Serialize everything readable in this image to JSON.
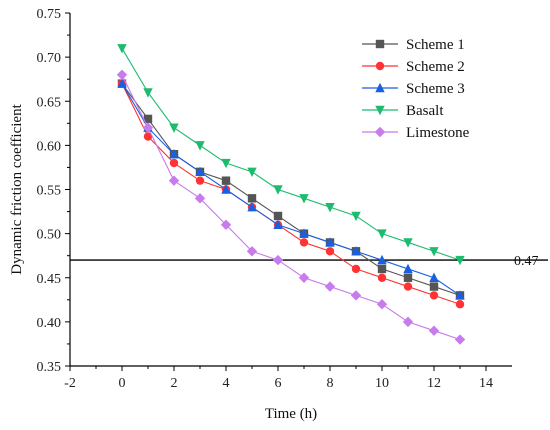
{
  "chart_data": {
    "type": "line",
    "title": "",
    "xlabel": "Time (h)",
    "ylabel": "Dynamic friction coefficient",
    "xlim": [
      -2,
      15
    ],
    "ylim": [
      0.35,
      0.75
    ],
    "xticks": [
      -2,
      0,
      2,
      4,
      6,
      8,
      10,
      12,
      14
    ],
    "yticks": [
      0.35,
      0.4,
      0.45,
      0.5,
      0.55,
      0.6,
      0.65,
      0.7,
      0.75
    ],
    "ytick_labels": [
      "0.35",
      "0.40",
      "0.45",
      "0.50",
      "0.55",
      "0.60",
      "0.65",
      "0.70",
      "0.75"
    ],
    "grid": false,
    "legend_position": "top-right",
    "x": [
      0,
      1,
      2,
      3,
      4,
      5,
      6,
      7,
      8,
      9,
      10,
      11,
      12,
      13
    ],
    "series": [
      {
        "name": "Scheme 1",
        "color": "#555555",
        "marker": "square",
        "values": [
          0.67,
          0.63,
          0.59,
          0.57,
          0.56,
          0.54,
          0.52,
          0.5,
          0.49,
          0.48,
          0.46,
          0.45,
          0.44,
          0.43
        ]
      },
      {
        "name": "Scheme 2",
        "color": "#ff3333",
        "marker": "circle",
        "values": [
          0.67,
          0.61,
          0.58,
          0.56,
          0.55,
          0.53,
          0.51,
          0.49,
          0.48,
          0.46,
          0.45,
          0.44,
          0.43,
          0.42
        ]
      },
      {
        "name": "Scheme 3",
        "color": "#1a5fe0",
        "marker": "triangle-up",
        "values": [
          0.67,
          0.62,
          0.59,
          0.57,
          0.55,
          0.53,
          0.51,
          0.5,
          0.49,
          0.48,
          0.47,
          0.46,
          0.45,
          0.43
        ]
      },
      {
        "name": "Basalt",
        "color": "#1dbb6e",
        "marker": "triangle-down",
        "values": [
          0.71,
          0.66,
          0.62,
          0.6,
          0.58,
          0.57,
          0.55,
          0.54,
          0.53,
          0.52,
          0.5,
          0.49,
          0.48,
          0.47
        ]
      },
      {
        "name": "Limestone",
        "color": "#c77bec",
        "marker": "diamond",
        "values": [
          0.68,
          0.62,
          0.56,
          0.54,
          0.51,
          0.48,
          0.47,
          0.45,
          0.44,
          0.43,
          0.42,
          0.4,
          0.39,
          0.38
        ]
      }
    ],
    "reference_line": {
      "value": 0.47,
      "label": "0.47",
      "color": "#000000"
    }
  }
}
